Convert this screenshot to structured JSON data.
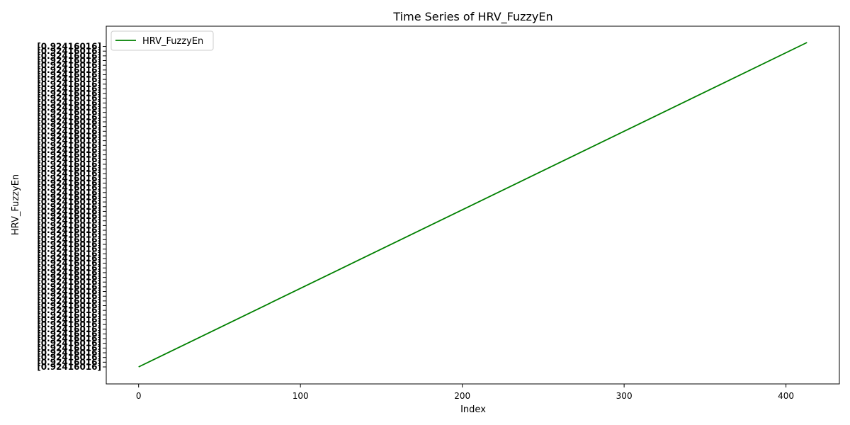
{
  "chart_data": {
    "type": "line",
    "title": "Time Series of HRV_FuzzyEn",
    "xlabel": "Index",
    "ylabel": "HRV_FuzzyEn",
    "xlim": [
      -20,
      433
    ],
    "x_ticks": [
      0,
      100,
      200,
      300,
      400
    ],
    "grid": false,
    "legend_placement": "top-left",
    "series": [
      {
        "name": "HRV_FuzzyEn",
        "color": "#008000",
        "x": [
          0,
          413
        ],
        "y": [
          0,
          413
        ]
      }
    ],
    "y_tick_text_sample": "[0.92416016]",
    "y_tick_count": 414
  }
}
